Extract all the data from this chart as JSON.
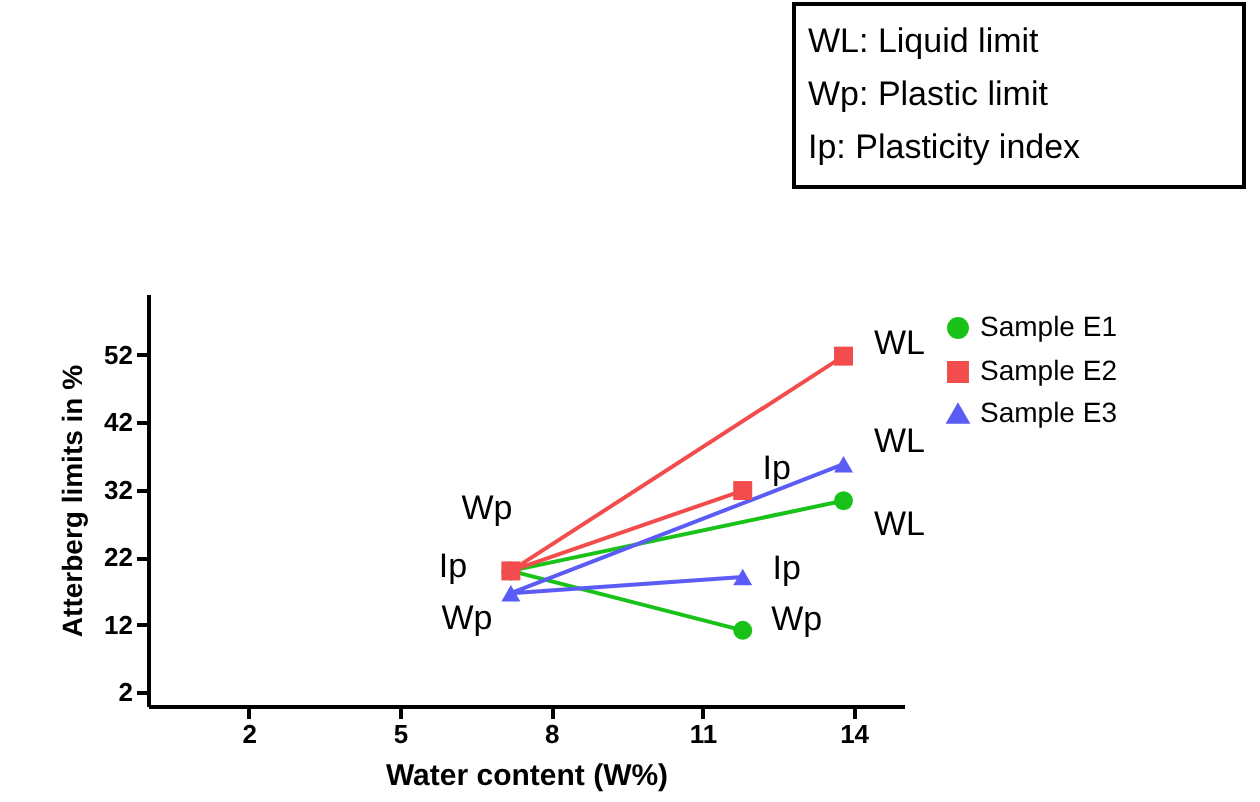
{
  "chart_data": {
    "type": "line",
    "xlabel": "Water content (W%)",
    "ylabel": "Atterberg limits in %",
    "xlim": [
      0,
      15
    ],
    "xticks": [
      2,
      5,
      8,
      11,
      14
    ],
    "ylim": [
      0,
      61
    ],
    "yticks": [
      2,
      12,
      22,
      32,
      42,
      52
    ],
    "grid": false,
    "legend": "top right",
    "line_style": "solid",
    "series": [
      {
        "name": "Sample E1",
        "color": "#19c219",
        "marker": "circle",
        "x": [
          11.8,
          7.2,
          13.8
        ],
        "values": [
          11.2,
          20.0,
          30.4
        ]
      },
      {
        "name": "Sample E2",
        "color": "#f24c4c",
        "marker": "square",
        "x": [
          11.8,
          7.2,
          13.8
        ],
        "values": [
          31.9,
          20.0,
          51.8
        ]
      },
      {
        "name": "Sample E3",
        "color": "#5b5bf5",
        "marker": "triangle",
        "x": [
          11.8,
          7.2,
          13.8
        ],
        "values": [
          19.1,
          16.7,
          35.8
        ]
      }
    ],
    "annotations": [
      "WL: Liquid limit",
      "Wp: Plastic limit",
      "Ip: Plasticity index",
      {
        "text": "WL",
        "x": 13.8,
        "y": 51.8
      },
      {
        "text": "Ip",
        "x": 11.8,
        "y": 31.9
      },
      {
        "text": "WL",
        "x": 13.8,
        "y": 35.8
      },
      {
        "text": "WL",
        "x": 13.8,
        "y": 30.4
      },
      {
        "text": "Ip",
        "x": 11.8,
        "y": 19.1
      },
      {
        "text": "Wp",
        "x": 11.8,
        "y": 11.2
      },
      {
        "text": "Wp",
        "x": 7.2,
        "y": 20.0
      },
      {
        "text": "Ip",
        "x": 7.2,
        "y": 20.0
      },
      {
        "text": "Wp",
        "x": 7.2,
        "y": 16.7
      }
    ]
  }
}
